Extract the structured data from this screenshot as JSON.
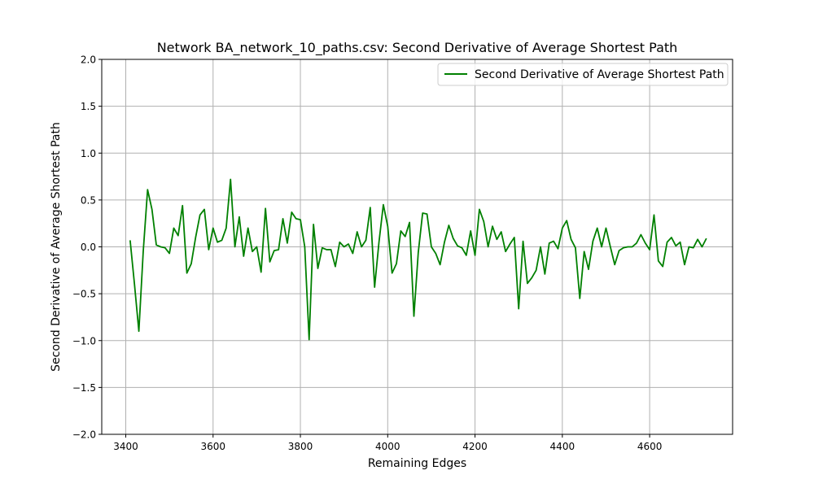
{
  "chart_data": {
    "type": "line",
    "title": "Network BA_network_10_paths.csv: Second Derivative of Average Shortest Path",
    "xlabel": "Remaining Edges",
    "ylabel": "Second Derivative of Average Shortest Path",
    "xlim": [
      3345,
      4790
    ],
    "ylim": [
      -2.0,
      2.0
    ],
    "xticks": [
      3400,
      3600,
      3800,
      4000,
      4200,
      4400,
      4600
    ],
    "yticks": [
      -2.0,
      -1.5,
      -1.0,
      -0.5,
      0.0,
      0.5,
      1.0,
      1.5,
      2.0
    ],
    "xtick_labels": [
      "3400",
      "3600",
      "3800",
      "4000",
      "4200",
      "4400",
      "4600"
    ],
    "ytick_labels": [
      "−2.0",
      "−1.5",
      "−1.0",
      "−0.5",
      "0.0",
      "0.5",
      "1.0",
      "1.5",
      "2.0"
    ],
    "grid": true,
    "legend_position": "top-right",
    "series": [
      {
        "name": "Second Derivative of Average Shortest Path",
        "color": "#008000",
        "x": [
          3410,
          3420,
          3430,
          3440,
          3450,
          3460,
          3470,
          3480,
          3490,
          3500,
          3510,
          3520,
          3530,
          3540,
          3550,
          3560,
          3570,
          3580,
          3590,
          3600,
          3610,
          3620,
          3630,
          3640,
          3650,
          3660,
          3670,
          3680,
          3690,
          3700,
          3710,
          3720,
          3730,
          3740,
          3750,
          3760,
          3770,
          3780,
          3790,
          3800,
          3810,
          3820,
          3830,
          3840,
          3850,
          3860,
          3870,
          3880,
          3890,
          3900,
          3910,
          3920,
          3930,
          3940,
          3950,
          3960,
          3970,
          3980,
          3990,
          4000,
          4010,
          4020,
          4030,
          4040,
          4050,
          4060,
          4070,
          4080,
          4090,
          4100,
          4110,
          4120,
          4130,
          4140,
          4150,
          4160,
          4170,
          4180,
          4190,
          4200,
          4210,
          4220,
          4230,
          4240,
          4250,
          4260,
          4270,
          4280,
          4290,
          4300,
          4310,
          4320,
          4330,
          4340,
          4350,
          4360,
          4370,
          4380,
          4390,
          4400,
          4410,
          4420,
          4430,
          4440,
          4450,
          4460,
          4470,
          4480,
          4490,
          4500,
          4510,
          4520,
          4530,
          4540,
          4550,
          4560,
          4570,
          4580,
          4590,
          4600,
          4610,
          4620,
          4630,
          4640,
          4650,
          4660,
          4670,
          4680,
          4690,
          4700,
          4710,
          4720,
          4730
        ],
        "values": [
          0.07,
          -0.4,
          -0.9,
          -0.05,
          0.61,
          0.4,
          0.02,
          0.0,
          -0.01,
          -0.07,
          0.2,
          0.12,
          0.44,
          -0.28,
          -0.18,
          0.1,
          0.34,
          0.4,
          -0.03,
          0.2,
          0.05,
          0.07,
          0.2,
          0.72,
          0.0,
          0.32,
          -0.1,
          0.2,
          -0.05,
          0.0,
          -0.27,
          0.41,
          -0.16,
          -0.04,
          -0.03,
          0.3,
          0.04,
          0.37,
          0.3,
          0.29,
          0.0,
          -0.99,
          0.24,
          -0.23,
          -0.01,
          -0.03,
          -0.03,
          -0.21,
          0.05,
          0.0,
          0.03,
          -0.07,
          0.16,
          0.0,
          0.07,
          0.42,
          -0.43,
          0.05,
          0.45,
          0.22,
          -0.28,
          -0.18,
          0.17,
          0.11,
          0.26,
          -0.74,
          -0.06,
          0.36,
          0.35,
          0.0,
          -0.07,
          -0.19,
          0.05,
          0.23,
          0.09,
          0.01,
          -0.01,
          -0.09,
          0.17,
          -0.09,
          0.4,
          0.27,
          0.0,
          0.22,
          0.08,
          0.16,
          -0.05,
          0.03,
          0.1,
          -0.66,
          0.06,
          -0.39,
          -0.33,
          -0.25,
          0.0,
          -0.29,
          0.04,
          0.06,
          -0.02,
          0.2,
          0.28,
          0.08,
          -0.01,
          -0.55,
          -0.05,
          -0.24,
          0.06,
          0.2,
          0.0,
          0.2,
          0.0,
          -0.19,
          -0.04,
          -0.01,
          0.0,
          0.0,
          0.04,
          0.13,
          0.04,
          -0.03,
          0.34,
          -0.15,
          -0.21,
          0.05,
          0.1,
          0.01,
          0.05,
          -0.19,
          0.0,
          -0.01,
          0.08,
          0.0,
          0.09
        ]
      }
    ]
  }
}
